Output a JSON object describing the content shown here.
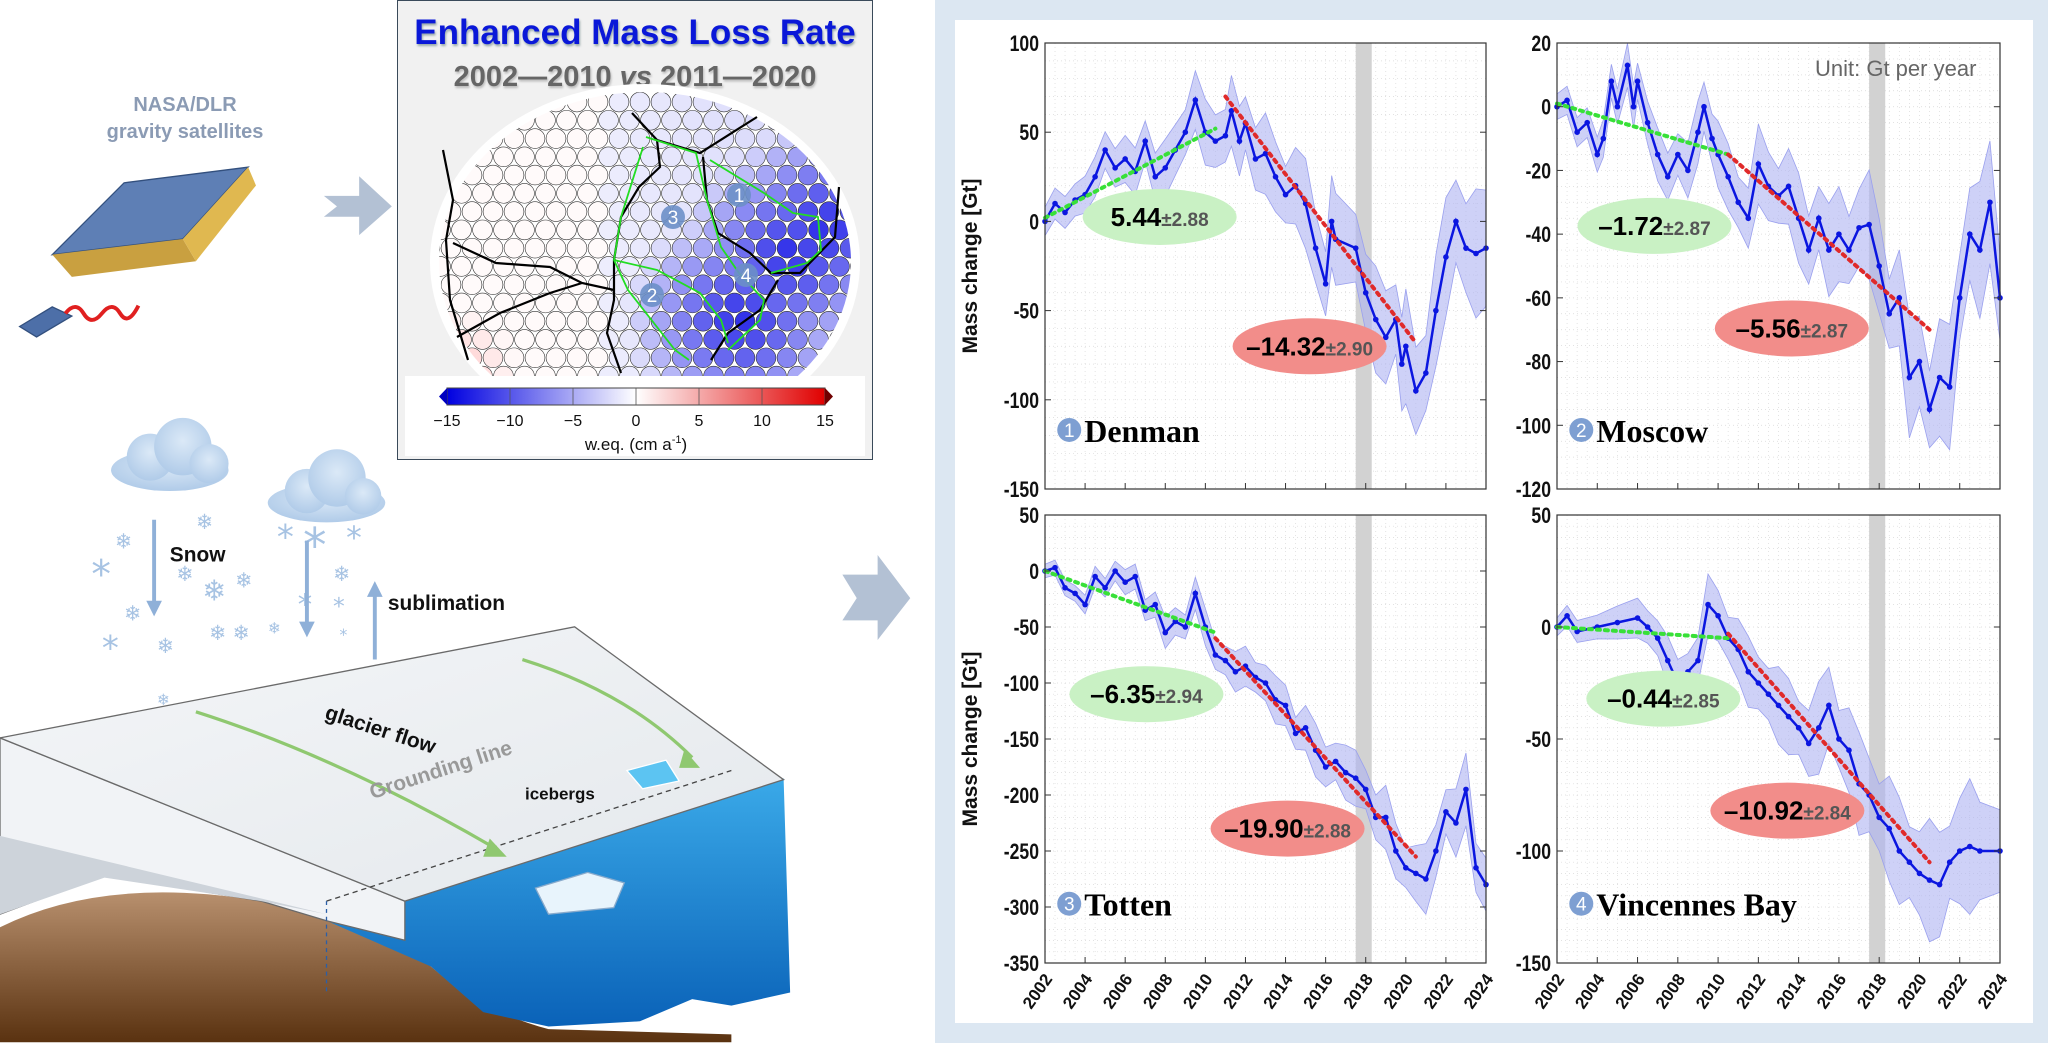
{
  "satellite": {
    "line1": "NASA/DLR",
    "line2": "gravity satellites"
  },
  "map_panel": {
    "title": "Enhanced Mass Loss Rate",
    "subtitle_a": "2002—2010 ",
    "subtitle_vs": "vs",
    "subtitle_b": " 2011—2020",
    "region_numbers": [
      "1",
      "2",
      "3",
      "4"
    ],
    "colorbar": {
      "ticks": [
        "−15",
        "−10",
        "−5",
        "0",
        "5",
        "10",
        "15"
      ],
      "range": [
        -15,
        15
      ],
      "label": "w.eq. (cm a",
      "label_sup": "-1",
      "label_end": ")",
      "colormap": "blue-white-red"
    }
  },
  "cartoon": {
    "snow": "Snow",
    "sublimation": "sublimation",
    "glacier_flow": "glacier flow",
    "grounding_line": "Grounding line",
    "icebergs": "icebergs"
  },
  "unit_note": "Unit: Gt per year",
  "colors": {
    "series": "#0b16e0",
    "band": "#aeb3f2",
    "trend_early": "#38e038",
    "trend_late": "#e02a2a",
    "early_label_bg": "#c9f1c4",
    "late_label_bg": "#f28d8a",
    "gap": "#d2d2d2",
    "panel_bg": "#dce7f2"
  },
  "chart_data": [
    {
      "type": "line",
      "number": "1",
      "title": "Denman",
      "ylabel": "Mass change [Gt]",
      "xlim": [
        2002,
        2024
      ],
      "ylim": [
        -150,
        100
      ],
      "xticks": [
        "2002",
        "2004",
        "2006",
        "2008",
        "2010",
        "2012",
        "2014",
        "2016",
        "2018",
        "2020",
        "2022",
        "2024"
      ],
      "show_xtick_labels": false,
      "yticks": [
        "100",
        "50",
        "0",
        "-50",
        "-100",
        "-150"
      ],
      "ytick_values": [
        100,
        50,
        0,
        -50,
        -100,
        -150
      ],
      "minor_y": 10,
      "gap_years": [
        2017.5,
        2018.3
      ],
      "band_halfwidth": [
        8,
        30
      ],
      "series": [
        [
          2002,
          0
        ],
        [
          2002.5,
          10
        ],
        [
          2003,
          5
        ],
        [
          2003.5,
          12
        ],
        [
          2004,
          15
        ],
        [
          2004.5,
          25
        ],
        [
          2005,
          40
        ],
        [
          2005.5,
          30
        ],
        [
          2006,
          35
        ],
        [
          2006.5,
          28
        ],
        [
          2007,
          45
        ],
        [
          2007.5,
          25
        ],
        [
          2008,
          30
        ],
        [
          2008.5,
          40
        ],
        [
          2009,
          50
        ],
        [
          2009.5,
          68
        ],
        [
          2010,
          50
        ],
        [
          2010.5,
          45
        ],
        [
          2011,
          48
        ],
        [
          2011.3,
          62
        ],
        [
          2011.7,
          45
        ],
        [
          2012,
          55
        ],
        [
          2012.5,
          35
        ],
        [
          2013,
          38
        ],
        [
          2013.5,
          25
        ],
        [
          2014,
          15
        ],
        [
          2014.5,
          20
        ],
        [
          2015,
          10
        ],
        [
          2015.5,
          -15
        ],
        [
          2016,
          -35
        ],
        [
          2016.3,
          0
        ],
        [
          2016.5,
          -10
        ],
        [
          2017.5,
          -15
        ],
        [
          2018,
          -40
        ],
        [
          2018.5,
          -55
        ],
        [
          2019,
          -65
        ],
        [
          2019.5,
          -55
        ],
        [
          2019.8,
          -80
        ],
        [
          2020,
          -70
        ],
        [
          2020.5,
          -95
        ],
        [
          2021,
          -85
        ],
        [
          2021.5,
          -50
        ],
        [
          2022,
          -20
        ],
        [
          2022.5,
          0
        ],
        [
          2023,
          -15
        ],
        [
          2023.5,
          -18
        ],
        [
          2024,
          -15
        ]
      ],
      "trend_early": {
        "rate": "5.44",
        "err": "±2.88",
        "from": [
          2002,
          2
        ],
        "to": [
          2010.5,
          52
        ]
      },
      "trend_late": {
        "rate": "–14.32",
        "err": "±2.90",
        "from": [
          2011,
          70
        ],
        "to": [
          2020.5,
          -68
        ]
      }
    },
    {
      "type": "line",
      "number": "2",
      "title": "Moscow",
      "ylabel": "",
      "xlim": [
        2002,
        2024
      ],
      "ylim": [
        -120,
        20
      ],
      "xticks": [
        "2002",
        "2004",
        "2006",
        "2008",
        "2010",
        "2012",
        "2014",
        "2016",
        "2018",
        "2020",
        "2022",
        "2024"
      ],
      "show_xtick_labels": false,
      "yticks": [
        "20",
        "0",
        "-20",
        "-40",
        "-60",
        "-80",
        "-100",
        "-120"
      ],
      "ytick_values": [
        20,
        0,
        -20,
        -40,
        -60,
        -80,
        -100,
        -120
      ],
      "minor_y": 5,
      "gap_years": [
        2017.5,
        2018.3
      ],
      "band_halfwidth": [
        4,
        18
      ],
      "series": [
        [
          2002,
          0
        ],
        [
          2002.5,
          2
        ],
        [
          2003,
          -8
        ],
        [
          2003.5,
          -5
        ],
        [
          2004,
          -15
        ],
        [
          2004.3,
          -10
        ],
        [
          2004.7,
          8
        ],
        [
          2005,
          0
        ],
        [
          2005.5,
          13
        ],
        [
          2005.8,
          0
        ],
        [
          2006,
          8
        ],
        [
          2006.5,
          -5
        ],
        [
          2007,
          -15
        ],
        [
          2007.5,
          -22
        ],
        [
          2008,
          -15
        ],
        [
          2008.5,
          -20
        ],
        [
          2009,
          -8
        ],
        [
          2009.3,
          0
        ],
        [
          2009.7,
          -10
        ],
        [
          2010,
          -15
        ],
        [
          2010.5,
          -22
        ],
        [
          2011,
          -30
        ],
        [
          2011.5,
          -35
        ],
        [
          2012,
          -18
        ],
        [
          2012.5,
          -25
        ],
        [
          2013,
          -28
        ],
        [
          2013.5,
          -25
        ],
        [
          2014,
          -35
        ],
        [
          2014.5,
          -45
        ],
        [
          2015,
          -35
        ],
        [
          2015.5,
          -45
        ],
        [
          2016,
          -40
        ],
        [
          2016.5,
          -45
        ],
        [
          2017,
          -38
        ],
        [
          2017.5,
          -37
        ],
        [
          2018,
          -50
        ],
        [
          2018.5,
          -65
        ],
        [
          2019,
          -60
        ],
        [
          2019.5,
          -85
        ],
        [
          2020,
          -80
        ],
        [
          2020.5,
          -95
        ],
        [
          2021,
          -85
        ],
        [
          2021.5,
          -88
        ],
        [
          2022,
          -60
        ],
        [
          2022.5,
          -40
        ],
        [
          2023,
          -45
        ],
        [
          2023.5,
          -30
        ],
        [
          2024,
          -60
        ]
      ],
      "trend_early": {
        "rate": "–1.72",
        "err": "±2.87",
        "from": [
          2002,
          1
        ],
        "to": [
          2010.5,
          -15
        ]
      },
      "trend_late": {
        "rate": "–5.56",
        "err": "±2.87",
        "from": [
          2010.5,
          -15
        ],
        "to": [
          2020.5,
          -70
        ]
      }
    },
    {
      "type": "line",
      "number": "3",
      "title": "Totten",
      "ylabel": "Mass change [Gt]",
      "xlim": [
        2002,
        2024
      ],
      "ylim": [
        -350,
        50
      ],
      "xticks": [
        "2002",
        "2004",
        "2006",
        "2008",
        "2010",
        "2012",
        "2014",
        "2016",
        "2018",
        "2020",
        "2022",
        "2024"
      ],
      "show_xtick_labels": true,
      "yticks": [
        "50",
        "0",
        "-50",
        "-100",
        "-150",
        "-200",
        "-250",
        "-300",
        "-350"
      ],
      "ytick_values": [
        50,
        0,
        -50,
        -100,
        -150,
        -200,
        -250,
        -300,
        -350
      ],
      "minor_y": 10,
      "gap_years": [
        2017.5,
        2018.3
      ],
      "band_halfwidth": [
        6,
        28
      ],
      "series": [
        [
          2002,
          0
        ],
        [
          2002.5,
          3
        ],
        [
          2003,
          -15
        ],
        [
          2003.5,
          -20
        ],
        [
          2004,
          -30
        ],
        [
          2004.5,
          -5
        ],
        [
          2005,
          -15
        ],
        [
          2005.5,
          0
        ],
        [
          2006,
          -10
        ],
        [
          2006.5,
          -5
        ],
        [
          2007,
          -35
        ],
        [
          2007.5,
          -30
        ],
        [
          2008,
          -55
        ],
        [
          2008.5,
          -45
        ],
        [
          2009,
          -50
        ],
        [
          2009.5,
          -20
        ],
        [
          2010,
          -50
        ],
        [
          2010.5,
          -75
        ],
        [
          2011,
          -80
        ],
        [
          2011.5,
          -90
        ],
        [
          2012,
          -85
        ],
        [
          2012.5,
          -95
        ],
        [
          2013,
          -100
        ],
        [
          2013.5,
          -115
        ],
        [
          2014,
          -120
        ],
        [
          2014.5,
          -145
        ],
        [
          2015,
          -140
        ],
        [
          2015.5,
          -160
        ],
        [
          2016,
          -175
        ],
        [
          2016.5,
          -170
        ],
        [
          2017,
          -180
        ],
        [
          2017.5,
          -185
        ],
        [
          2018,
          -195
        ],
        [
          2018.5,
          -220
        ],
        [
          2019,
          -220
        ],
        [
          2019.5,
          -250
        ],
        [
          2020,
          -265
        ],
        [
          2020.5,
          -270
        ],
        [
          2021,
          -275
        ],
        [
          2021.5,
          -250
        ],
        [
          2022,
          -215
        ],
        [
          2022.5,
          -225
        ],
        [
          2023,
          -195
        ],
        [
          2023.5,
          -265
        ],
        [
          2024,
          -280
        ]
      ],
      "trend_early": {
        "rate": "–6.35",
        "err": "±2.94",
        "from": [
          2002,
          0
        ],
        "to": [
          2010.5,
          -55
        ]
      },
      "trend_late": {
        "rate": "–19.90",
        "err": "±2.88",
        "from": [
          2010.5,
          -60
        ],
        "to": [
          2020.5,
          -255
        ]
      }
    },
    {
      "type": "line",
      "number": "4",
      "title": "Vincennes Bay",
      "ylabel": "",
      "xlim": [
        2002,
        2024
      ],
      "ylim": [
        -150,
        50
      ],
      "xticks": [
        "2002",
        "2004",
        "2006",
        "2008",
        "2010",
        "2012",
        "2014",
        "2016",
        "2018",
        "2020",
        "2022",
        "2024"
      ],
      "show_xtick_labels": true,
      "yticks": [
        "50",
        "0",
        "-50",
        "-100",
        "-150"
      ],
      "ytick_values": [
        50,
        0,
        -50,
        -100,
        -150
      ],
      "minor_y": 5,
      "gap_years": [
        2017.5,
        2018.3
      ],
      "band_halfwidth": [
        4,
        25
      ],
      "series": [
        [
          2002,
          0
        ],
        [
          2002.5,
          5
        ],
        [
          2003,
          -2
        ],
        [
          2004,
          0
        ],
        [
          2005,
          2
        ],
        [
          2006,
          4
        ],
        [
          2006.5,
          0
        ],
        [
          2007,
          -5
        ],
        [
          2007.5,
          -15
        ],
        [
          2008,
          -25
        ],
        [
          2008.5,
          -20
        ],
        [
          2009,
          -15
        ],
        [
          2009.5,
          10
        ],
        [
          2010,
          5
        ],
        [
          2010.5,
          -5
        ],
        [
          2011,
          -10
        ],
        [
          2011.5,
          -20
        ],
        [
          2012,
          -25
        ],
        [
          2012.5,
          -30
        ],
        [
          2013,
          -35
        ],
        [
          2013.5,
          -40
        ],
        [
          2014,
          -45
        ],
        [
          2014.5,
          -52
        ],
        [
          2015,
          -45
        ],
        [
          2015.5,
          -35
        ],
        [
          2016,
          -50
        ],
        [
          2016.5,
          -55
        ],
        [
          2017,
          -70
        ],
        [
          2017.5,
          -75
        ],
        [
          2018,
          -85
        ],
        [
          2018.5,
          -90
        ],
        [
          2019,
          -100
        ],
        [
          2019.5,
          -105
        ],
        [
          2020,
          -110
        ],
        [
          2020.5,
          -113
        ],
        [
          2021,
          -115
        ],
        [
          2021.5,
          -105
        ],
        [
          2022,
          -100
        ],
        [
          2022.5,
          -98
        ],
        [
          2023,
          -100
        ],
        [
          2024,
          -100
        ]
      ],
      "trend_early": {
        "rate": "–0.44",
        "err": "±2.85",
        "from": [
          2002,
          0
        ],
        "to": [
          2010.5,
          -5
        ]
      },
      "trend_late": {
        "rate": "–10.92",
        "err": "±2.84",
        "from": [
          2010.5,
          -3
        ],
        "to": [
          2020.5,
          -105
        ]
      }
    }
  ]
}
